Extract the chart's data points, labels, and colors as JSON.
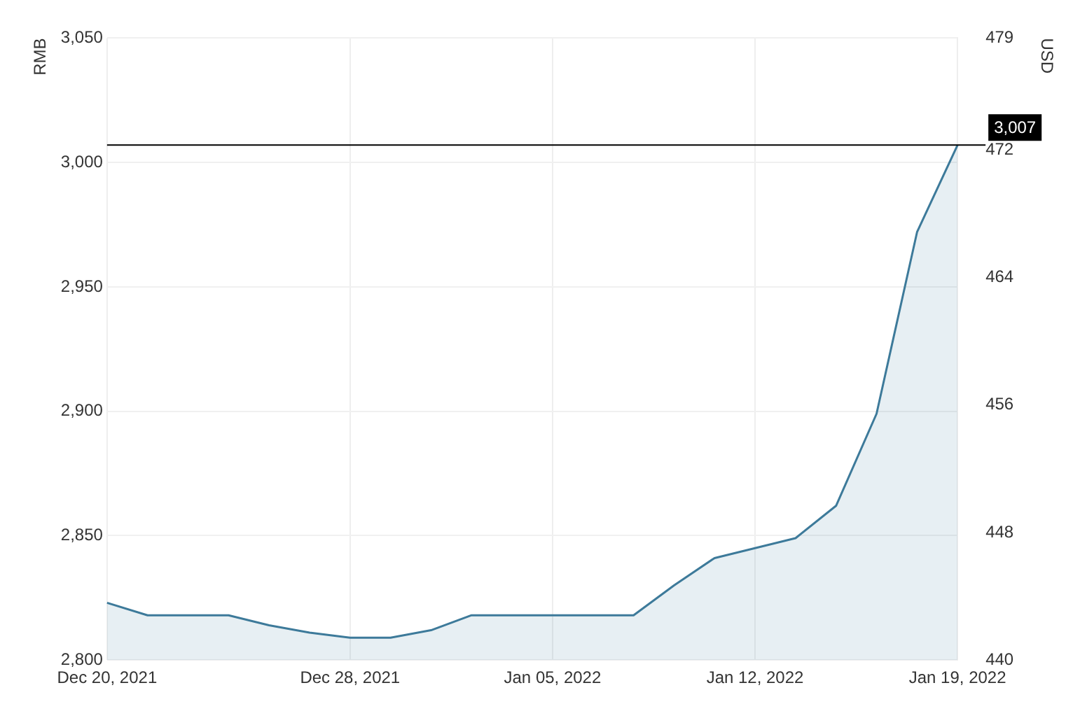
{
  "chart_data": {
    "type": "area",
    "ylabel": "RMB",
    "y2label": "USD",
    "categories": [
      "Dec 20, 2021",
      null,
      null,
      null,
      null,
      null,
      "Dec 28, 2021",
      null,
      null,
      null,
      null,
      "Jan 05, 2022",
      null,
      null,
      null,
      null,
      "Jan 12, 2022",
      null,
      null,
      null,
      null,
      "Jan 19, 2022"
    ],
    "series": [
      {
        "color": "#3d7a9a",
        "values": [
          2823,
          2818,
          2818,
          2818,
          2814,
          2811,
          2809,
          2809,
          2812,
          2818,
          2818,
          2818,
          2818,
          2818,
          2830,
          2841,
          2845,
          2849,
          2862,
          2899,
          2972,
          3007
        ]
      }
    ],
    "ylim": [
      2800,
      3050
    ],
    "yticks": [
      {
        "value": 2800,
        "label": "2,800"
      },
      {
        "value": 2850,
        "label": "2,850"
      },
      {
        "value": 2900,
        "label": "2,900"
      },
      {
        "value": 2950,
        "label": "2,950"
      },
      {
        "value": 3000,
        "label": "3,000"
      },
      {
        "value": 3050,
        "label": "3,050"
      }
    ],
    "y2lim": [
      440,
      479
    ],
    "y2ticks": [
      440,
      448,
      456,
      464,
      472,
      479
    ],
    "ref_lines": [
      {
        "axis": "y",
        "value": 3007,
        "label": "3,007",
        "color": "#000000"
      }
    ],
    "grid": true,
    "legend": false,
    "marker": "none",
    "line_style": "solid"
  }
}
